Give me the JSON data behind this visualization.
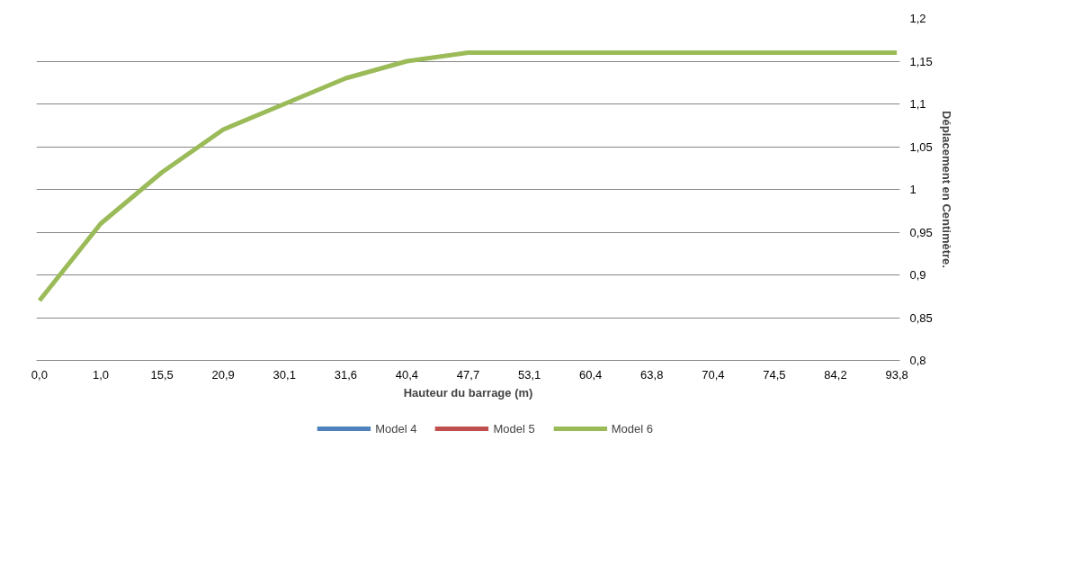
{
  "chart_data": {
    "type": "line",
    "xlabel": "Hauteur du barrage (m)",
    "ylabel": "Déplacement en Centimètre.",
    "categories": [
      "0,0",
      "1,0",
      "15,5",
      "20,9",
      "30,1",
      "31,6",
      "40,4",
      "47,7",
      "53,1",
      "60,4",
      "63,8",
      "70,4",
      "74,5",
      "84,2",
      "93,8"
    ],
    "series": [
      {
        "name": "Model 4",
        "color": "#4f81bd",
        "values": [
          null,
          null,
          null,
          null,
          null,
          null,
          null,
          null,
          null,
          null,
          null,
          null,
          null,
          null,
          null
        ]
      },
      {
        "name": "Model 5",
        "color": "#c0504d",
        "values": [
          null,
          null,
          null,
          null,
          null,
          null,
          null,
          null,
          null,
          null,
          null,
          null,
          null,
          null,
          null
        ]
      },
      {
        "name": "Model 6",
        "color": "#9bbb59",
        "values": [
          0.87,
          0.96,
          1.02,
          1.07,
          1.1,
          1.13,
          1.15,
          1.16,
          1.16,
          1.16,
          1.16,
          1.16,
          1.16,
          1.16,
          1.16
        ]
      }
    ],
    "ylim": [
      0.8,
      1.2
    ],
    "yticks": [
      {
        "value": 0.8,
        "label": "0,8"
      },
      {
        "value": 0.85,
        "label": "0,85"
      },
      {
        "value": 0.9,
        "label": "0,9"
      },
      {
        "value": 0.95,
        "label": "0,95"
      },
      {
        "value": 1,
        "label": "1"
      },
      {
        "value": 1.05,
        "label": "1,05"
      },
      {
        "value": 1.1,
        "label": "1,1"
      },
      {
        "value": 1.15,
        "label": "1,15"
      },
      {
        "value": 1.2,
        "label": "1,2"
      }
    ],
    "grid": "y",
    "legend": "bottom",
    "marker": "none",
    "line_style": "solid"
  }
}
